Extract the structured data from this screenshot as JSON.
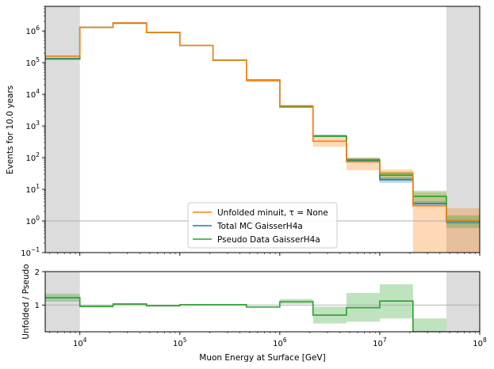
{
  "chart_data": [
    {
      "type": "line",
      "x_scale": "log",
      "y_scale": "log",
      "xlim": [
        4500,
        100000000
      ],
      "ylim": [
        0.1,
        6000000
      ],
      "ylabel": "Events for 10.0 years",
      "x_tick_labels": [
        "10^4",
        "10^5",
        "10^6",
        "10^7",
        "10^8"
      ],
      "y_tick_labels": [
        "10^-1",
        "10^0",
        "10^1",
        "10^2",
        "10^3",
        "10^4",
        "10^5",
        "10^6"
      ],
      "shaded_regions": [
        [
          4500,
          10000
        ],
        [
          46400000,
          100000000
        ]
      ],
      "reference_line": 1,
      "bin_edges": [
        4500,
        10000,
        21500,
        46400,
        100000,
        215000,
        464000,
        1000000,
        2150000,
        4640000,
        10000000,
        21500000,
        46400000,
        100000000
      ],
      "series": [
        {
          "name": "Unfolded minuit, τ = None",
          "color": "#ff7f0e",
          "values": [
            160000,
            1300000,
            1800000,
            900000,
            350000,
            120000,
            27000,
            4300,
            330,
            75,
            32,
            3,
            1
          ],
          "band_low": [
            150000,
            1250000,
            1750000,
            880000,
            340000,
            115000,
            25000,
            3900,
            220,
            40,
            20,
            0.1,
            0.1
          ],
          "band_high": [
            170000,
            1350000,
            1850000,
            920000,
            360000,
            125000,
            29000,
            4700,
            420,
            100,
            42,
            8,
            2.5
          ]
        },
        {
          "name": "Total MC GaisserH4a",
          "color": "#1f77b4",
          "values": [
            135000,
            1300000,
            1800000,
            900000,
            350000,
            120000,
            28000,
            4000,
            480,
            80,
            20,
            3.5,
            0.95
          ],
          "band_low": [
            130000,
            1280000,
            1780000,
            890000,
            345000,
            118000,
            27000,
            3800,
            440,
            70,
            16,
            2.9,
            0.8
          ],
          "band_high": [
            140000,
            1320000,
            1820000,
            910000,
            355000,
            122000,
            29000,
            4200,
            520,
            92,
            24,
            4.2,
            1.1
          ]
        },
        {
          "name": "Pseudo Data GaisserH4a",
          "color": "#2ca02c",
          "values": [
            130000,
            1300000,
            1750000,
            900000,
            350000,
            120000,
            28000,
            4100,
            480,
            85,
            28,
            6,
            1
          ],
          "band_low": [
            125000,
            1280000,
            1730000,
            890000,
            345000,
            118000,
            27000,
            3900,
            430,
            70,
            20,
            3.5,
            0.6
          ],
          "band_high": [
            135000,
            1320000,
            1770000,
            910000,
            355000,
            122000,
            29000,
            4300,
            530,
            100,
            36,
            9,
            1.5
          ]
        }
      ]
    },
    {
      "type": "line",
      "x_scale": "log",
      "xlim": [
        4500,
        100000000
      ],
      "ylim": [
        0.2,
        2
      ],
      "xlabel": "Muon Energy at Surface [GeV]",
      "ylabel": "Unfolded / Pseudo",
      "x_tick_labels": [
        "10^4",
        "10^5",
        "10^6",
        "10^7",
        "10^8"
      ],
      "y_ticks": [
        1,
        2
      ],
      "shaded_regions": [
        [
          4500,
          10000
        ],
        [
          46400000,
          100000000
        ]
      ],
      "reference_line": 1,
      "bin_edges": [
        4500,
        10000,
        21500,
        46400,
        100000,
        215000,
        464000,
        1000000,
        2150000,
        4640000,
        10000000,
        21500000,
        46400000,
        100000000
      ],
      "series": [
        {
          "name": "Unfolded / Pseudo",
          "color": "#2ca02c",
          "values": [
            1.22,
            0.96,
            1.03,
            0.98,
            1.01,
            1.01,
            0.94,
            1.1,
            0.7,
            0.92,
            1.12,
            0.2,
            0.2
          ],
          "band_low": [
            1.1,
            0.93,
            1.0,
            0.95,
            0.99,
            0.99,
            0.92,
            1.03,
            0.45,
            0.5,
            0.6,
            0.2,
            0.2
          ],
          "band_high": [
            1.34,
            0.99,
            1.06,
            1.01,
            1.03,
            1.03,
            0.96,
            1.18,
            0.95,
            1.36,
            1.62,
            0.6,
            0.2
          ]
        }
      ]
    }
  ],
  "legend": {
    "items": [
      {
        "label": "Unfolded minuit, τ = None",
        "color": "#ff7f0e"
      },
      {
        "label": "Total MC GaisserH4a",
        "color": "#1f77b4"
      },
      {
        "label": "Pseudo Data GaisserH4a",
        "color": "#2ca02c"
      }
    ]
  }
}
